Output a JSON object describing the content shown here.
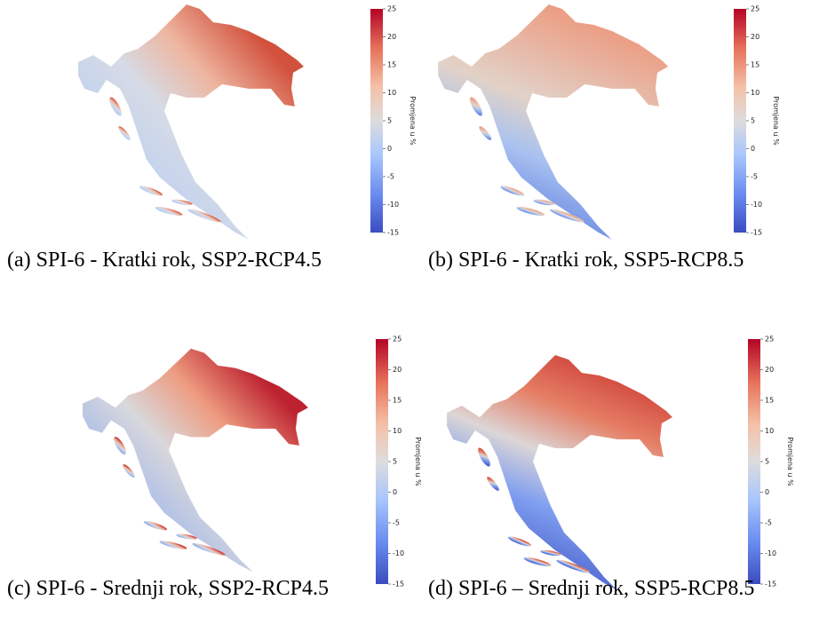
{
  "panels": [
    {
      "caption": "(a) SPI-6 - Kratki rok, SSP2-RCP4.5",
      "colorbar": {
        "label": "Promjena u %",
        "lim": [
          -15,
          25
        ],
        "ticks": [
          -15,
          -10,
          -5,
          0,
          5,
          10,
          15,
          20,
          25
        ]
      }
    },
    {
      "caption": "(b) SPI-6 - Kratki rok, SSP5-RCP8.5",
      "colorbar": {
        "label": "Promjena u %",
        "lim": [
          -15,
          25
        ],
        "ticks": [
          -15,
          -10,
          -5,
          0,
          5,
          10,
          15,
          20,
          25
        ]
      }
    },
    {
      "caption": "(c) SPI-6 - Srednji rok, SSP2-RCP4.5",
      "colorbar": {
        "label": "Promjena u %",
        "lim": [
          -15,
          25
        ],
        "ticks": [
          -15,
          -10,
          -5,
          0,
          5,
          10,
          15,
          20,
          25
        ]
      }
    },
    {
      "caption": "(d) SPI-6 – Srednji rok, SSP5-RCP8.5",
      "colorbar": {
        "label": "Promjena u %",
        "lim": [
          -15,
          25
        ],
        "ticks": [
          -15,
          -10,
          -5,
          0,
          5,
          10,
          15,
          20,
          25
        ]
      }
    }
  ]
}
